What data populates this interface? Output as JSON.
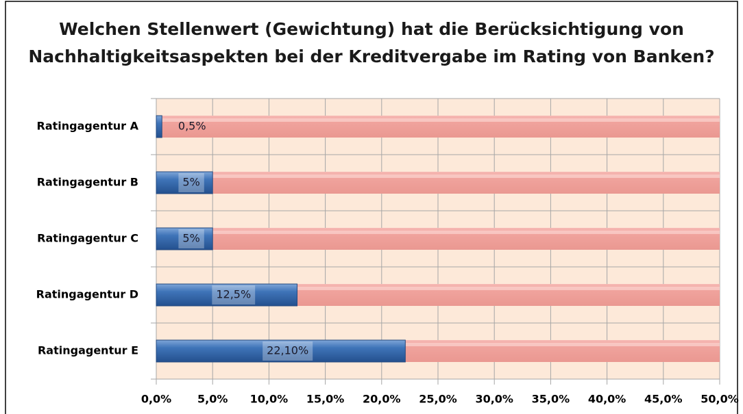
{
  "chart_data": {
    "type": "bar",
    "orientation": "horizontal",
    "title": [
      "Welchen Stellenwert (Gewichtung) hat die Berücksichtigung von",
      "Nachhaltigkeitsaspekten bei der Kreditvergabe im Rating von Banken?"
    ],
    "categories": [
      "Ratingagentur A",
      "Ratingagentur B",
      "Ratingagentur C",
      "Ratingagentur D",
      "Ratingagentur E"
    ],
    "values": [
      0.5,
      5,
      5,
      12.5,
      22.1
    ],
    "value_labels": [
      "0,5%",
      "5%",
      "5%",
      "12,5%",
      "22,10%"
    ],
    "color": "#3f74b8",
    "xlim": [
      0,
      50
    ],
    "xticks": [
      {
        "value": 0,
        "label": "0,0%"
      },
      {
        "value": 5,
        "label": "5,0%"
      },
      {
        "value": 10,
        "label": "10,0%"
      },
      {
        "value": 15,
        "label": "15,0%"
      },
      {
        "value": 20,
        "label": "20,0%"
      },
      {
        "value": 25,
        "label": "25,0%"
      },
      {
        "value": 30,
        "label": "30,0%"
      },
      {
        "value": 35,
        "label": "35,0%"
      },
      {
        "value": 40,
        "label": "40,0%"
      },
      {
        "value": 45,
        "label": "45,0%"
      },
      {
        "value": 50,
        "label": "50,0%"
      }
    ],
    "grid": true
  }
}
